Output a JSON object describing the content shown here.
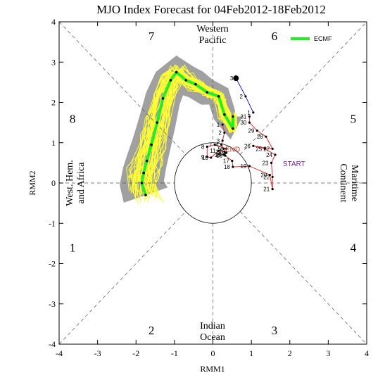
{
  "chart_data": {
    "type": "line",
    "title": "MJO Index Forecast for 04Feb2012-18Feb2012",
    "xlabel": "RMM1",
    "ylabel": "RMM2",
    "xlim": [
      -4,
      4
    ],
    "ylim": [
      -4,
      4
    ],
    "xticks": [
      "-4",
      "-3",
      "-2",
      "-1",
      "0",
      "1",
      "2",
      "3",
      "4"
    ],
    "yticks": [
      "-4",
      "-3",
      "-2",
      "-1",
      "0",
      "1",
      "2",
      "3",
      "4"
    ],
    "phase_labels": [
      {
        "label": "1",
        "x": -3.65,
        "y": -1.6
      },
      {
        "label": "2",
        "x": -1.6,
        "y": -3.65
      },
      {
        "label": "3",
        "x": 1.6,
        "y": -3.65
      },
      {
        "label": "4",
        "x": 3.65,
        "y": -1.6
      },
      {
        "label": "5",
        "x": 3.65,
        "y": 1.6
      },
      {
        "label": "6",
        "x": 1.6,
        "y": 3.65
      },
      {
        "label": "7",
        "x": -1.6,
        "y": 3.65
      },
      {
        "label": "8",
        "x": -3.65,
        "y": 1.6
      }
    ],
    "regions": {
      "top": [
        "Western",
        "Pacific"
      ],
      "bottom": [
        "Indian",
        "Ocean"
      ],
      "left": [
        "West. Hem.",
        "and Africa"
      ],
      "right": [
        "Maritime",
        "Continent"
      ]
    },
    "legend": {
      "label": "ECMF",
      "color": "#22ee22",
      "placement": "top-right"
    },
    "observed": {
      "color": "#e03030",
      "points": [
        {
          "day": "1",
          "x": 0.25,
          "y": 1.45
        },
        {
          "day": "2",
          "x": 0.3,
          "y": 1.25
        },
        {
          "day": "3",
          "x": 0.25,
          "y": 1.05
        },
        {
          "day": "4",
          "x": 0.22,
          "y": 0.95
        },
        {
          "day": "5",
          "x": 0.28,
          "y": 0.85
        },
        {
          "day": "6",
          "x": 0.35,
          "y": 0.85
        },
        {
          "day": "7",
          "x": 0.05,
          "y": 0.95
        },
        {
          "day": "8",
          "x": -0.15,
          "y": 0.9
        },
        {
          "day": "9",
          "x": -0.15,
          "y": 0.65
        },
        {
          "day": "10",
          "x": -0.05,
          "y": 0.63
        },
        {
          "day": "11",
          "x": 0.15,
          "y": 0.8
        },
        {
          "day": "12",
          "x": 0.3,
          "y": 0.78
        },
        {
          "day": "13",
          "x": 0.35,
          "y": 0.75
        },
        {
          "day": "14",
          "x": 0.3,
          "y": 0.72
        },
        {
          "day": "15",
          "x": 0.28,
          "y": 0.7
        },
        {
          "day": "16",
          "x": 0.32,
          "y": 0.68
        },
        {
          "day": "17",
          "x": 0.5,
          "y": 0.55
        },
        {
          "day": "18",
          "x": 0.52,
          "y": 0.4
        },
        {
          "day": "19",
          "x": 0.95,
          "y": 0.42
        },
        {
          "day": "20",
          "x": 1.48,
          "y": 0.2
        },
        {
          "day": "21",
          "x": 1.55,
          "y": -0.15
        },
        {
          "day": "22",
          "x": 1.55,
          "y": 0.15
        },
        {
          "day": "23",
          "x": 1.52,
          "y": 0.5
        },
        {
          "day": "24",
          "x": 1.62,
          "y": 0.7
        },
        {
          "day": "25",
          "x": 1.35,
          "y": 0.85
        },
        {
          "day": "26",
          "x": 1.05,
          "y": 0.92
        },
        {
          "day": "27",
          "x": 1.55,
          "y": 0.85
        },
        {
          "day": "28",
          "x": 1.38,
          "y": 1.15
        },
        {
          "day": "29",
          "x": 1.15,
          "y": 1.3
        },
        {
          "day": "30",
          "x": 0.95,
          "y": 1.5
        },
        {
          "day": "31",
          "x": 0.95,
          "y": 1.65
        }
      ]
    },
    "recent": {
      "color": "#2020c0",
      "points": [
        {
          "day": "1",
          "x": 1.05,
          "y": 1.75
        },
        {
          "day": "2",
          "x": 0.85,
          "y": 2.15
        },
        {
          "day": "3",
          "x": 0.6,
          "y": 2.6
        }
      ]
    },
    "start_label": {
      "text": "START",
      "x": 1.82,
      "y": 0.42,
      "color": "#7a1fa2"
    },
    "end_label": {
      "text": "END",
      "x": 0.32,
      "y": 0.78,
      "color": "#c03020"
    },
    "ensemble_mean": {
      "color": "#22ee22",
      "x": [
        0.52,
        0.52,
        0.3,
        0.15,
        -0.15,
        -0.45,
        -0.7,
        -0.95,
        -1.1,
        -1.3,
        -1.45,
        -1.6,
        -1.72,
        -1.8,
        -1.85,
        -1.75
      ],
      "y": [
        1.65,
        1.35,
        1.7,
        2.15,
        2.25,
        2.45,
        2.55,
        2.75,
        2.55,
        2.1,
        1.5,
        0.95,
        0.55,
        0.25,
        0.0,
        -0.3
      ]
    },
    "ensemble_spread": {
      "color": "#a0a0a0",
      "member_color": "#ffff33",
      "member_count": 50
    }
  }
}
